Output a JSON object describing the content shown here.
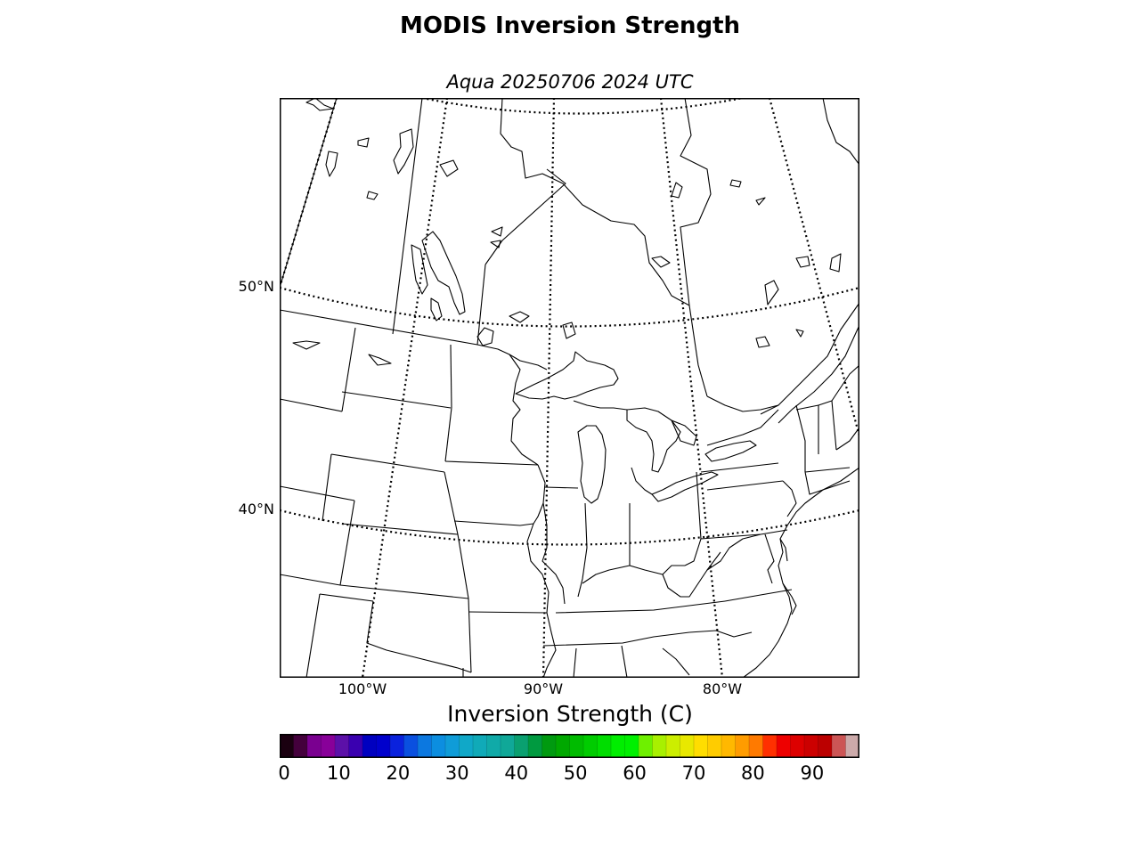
{
  "title": "MODIS Inversion Strength",
  "subtitle": "Aqua 20250706 2024 UTC",
  "map": {
    "latitude_labels": [
      "50°N",
      "40°N"
    ],
    "longitude_labels": [
      "100°W",
      "90°W",
      "80°W"
    ],
    "graticule_style": "dotted",
    "projection": "lambert-conformal",
    "region": "Upper Midwest / Great Lakes / Ontario / Quebec"
  },
  "colorbar": {
    "label": "Inversion Strength (C)",
    "ticks": [
      "0",
      "10",
      "20",
      "30",
      "40",
      "50",
      "60",
      "70",
      "80",
      "90"
    ],
    "range": [
      0,
      98
    ],
    "colors": [
      "#1a0010",
      "#44003c",
      "#7a0090",
      "#880099",
      "#5c10a8",
      "#3a00b0",
      "#0000c0",
      "#0000cc",
      "#0a22dd",
      "#0a50e0",
      "#0c78e0",
      "#0c8ee0",
      "#0f9cd8",
      "#10a8c8",
      "#10aab8",
      "#10aaa8",
      "#10a898",
      "#0aa070",
      "#009a40",
      "#009a10",
      "#00a800",
      "#00bb00",
      "#00cc00",
      "#00dd00",
      "#00ee00",
      "#00f000",
      "#6ef000",
      "#a8f000",
      "#ccee00",
      "#e8e800",
      "#ffdd00",
      "#ffcc00",
      "#ffb800",
      "#ff9c00",
      "#ff7a00",
      "#ff3000",
      "#ee0000",
      "#dd0000",
      "#cc0000",
      "#bb0000",
      "#cc5555",
      "#ccaaaa"
    ]
  }
}
